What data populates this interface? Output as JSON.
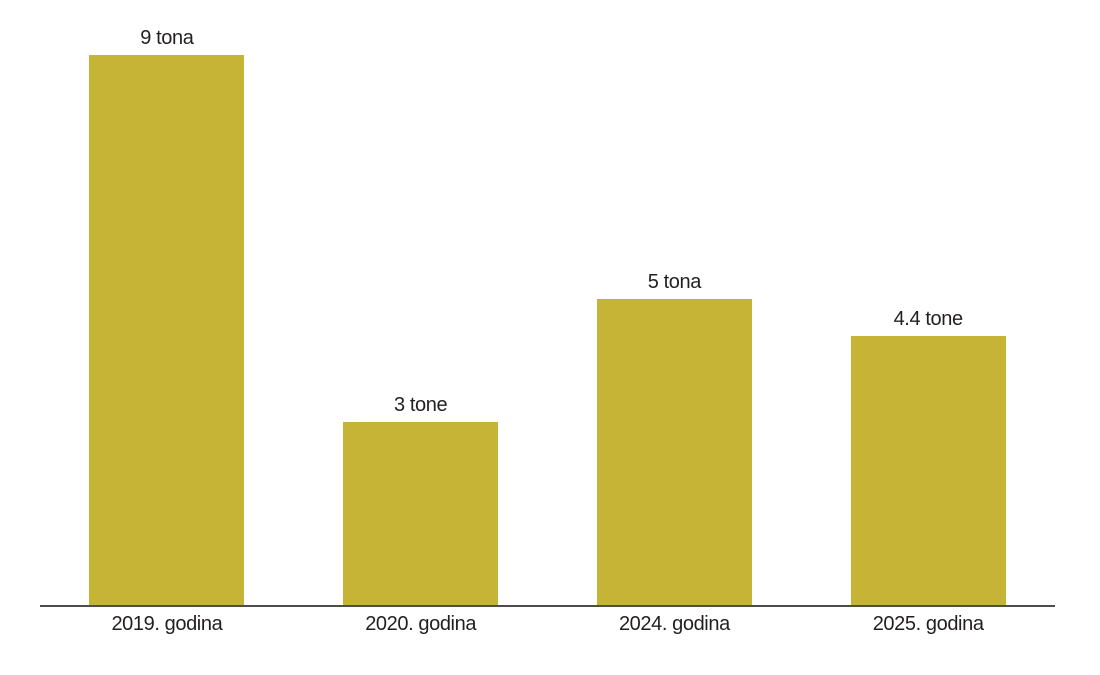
{
  "chart_data": {
    "type": "bar",
    "categories": [
      "2019. godina",
      "2020. godina",
      "2024. godina",
      "2025. godina"
    ],
    "values": [
      9,
      3,
      5,
      4.4
    ],
    "value_labels": [
      "9 tona",
      "3 tone",
      "5 tona",
      "4.4 tone"
    ],
    "title": "",
    "xlabel": "",
    "ylabel": "",
    "ylim": [
      0,
      9.9
    ],
    "grid": false,
    "legend": false,
    "layout_hints": {
      "bar_label_position": "above-bar",
      "axis_shown": "x-only"
    },
    "colors": {
      "bar": "#c6b436",
      "axis_line": "#4d4d4d",
      "text": "#231f20",
      "background": "#ffffff"
    }
  }
}
